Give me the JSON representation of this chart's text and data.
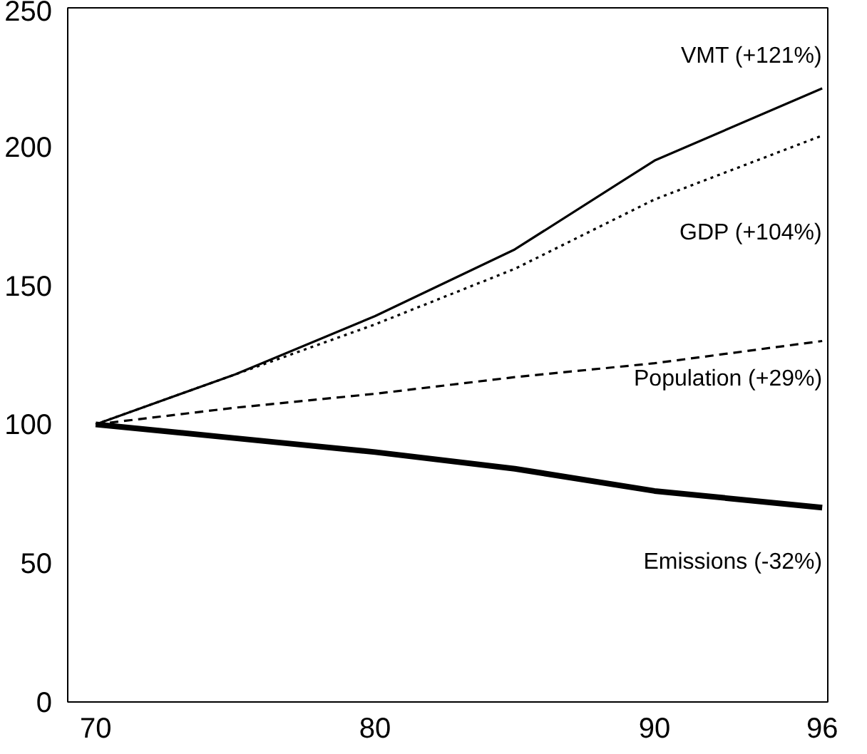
{
  "chart_data": {
    "type": "line",
    "x": [
      70,
      75,
      80,
      85,
      90,
      96
    ],
    "series": [
      {
        "name": "VMT (+121%)",
        "color": "#000000",
        "line_style": "solid",
        "values": [
          100,
          118,
          139,
          163,
          195,
          221
        ]
      },
      {
        "name": "GDP (+104%)",
        "color": "#000000",
        "line_style": "dotted",
        "values": [
          100,
          118,
          136,
          156,
          181,
          204
        ]
      },
      {
        "name": "Population (+29%)",
        "color": "#000000",
        "line_style": "dashed",
        "values": [
          100,
          106,
          111,
          117,
          122,
          130
        ]
      },
      {
        "name": "Emissions (-32%)",
        "color": "#000000",
        "line_style": "solid",
        "values": [
          100,
          95,
          90,
          84,
          76,
          70
        ]
      }
    ],
    "xlim": [
      69,
      96.2
    ],
    "xticks": [
      70,
      80,
      90,
      96
    ],
    "ylim": [
      0,
      250
    ],
    "yticks": [
      0,
      50,
      100,
      150,
      200,
      250
    ],
    "grid": false,
    "marker": "none"
  }
}
